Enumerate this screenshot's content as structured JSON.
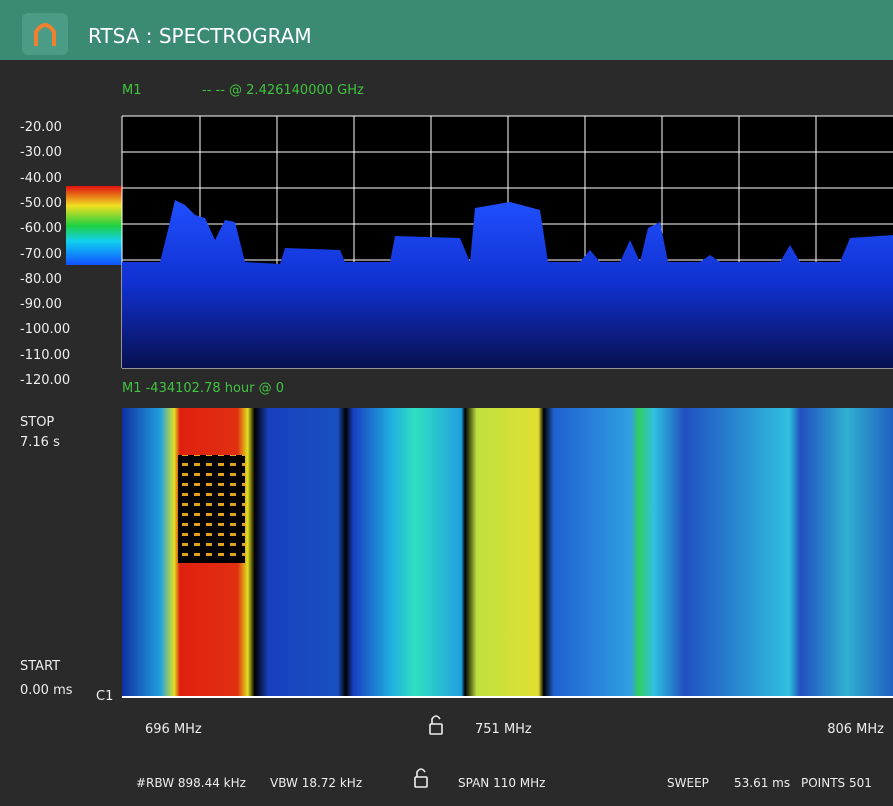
{
  "header": {
    "title": "RTSA : SPECTROGRAM"
  },
  "marker_top": {
    "label": "M1",
    "readout": "-- -- @ 2.426140000 GHz"
  },
  "y_axis": {
    "labels": [
      "-20.00",
      "-30.00",
      "-40.00",
      "-50.00",
      "-60.00",
      "-70.00",
      "-80.00",
      "-90.00",
      "-100.00",
      "-110.00",
      "-120.00"
    ]
  },
  "marker_bottom": {
    "readout": "M1 -434102.78 hour @ 0"
  },
  "time_labels": {
    "stop": "STOP",
    "stop_value": "7.16 s",
    "start": "START",
    "start_value": "0.00 ms",
    "cursor": "C1"
  },
  "freq_axis": {
    "start": "696 MHz",
    "center": "751 MHz",
    "stop": "806 MHz"
  },
  "footer": {
    "rbw": "#RBW 898.44 kHz",
    "vbw": "VBW 18.72 kHz",
    "span": "SPAN 110 MHz",
    "sweep": "SWEEP",
    "sweep_time": "53.61 ms",
    "points": "POINTS 501"
  }
}
